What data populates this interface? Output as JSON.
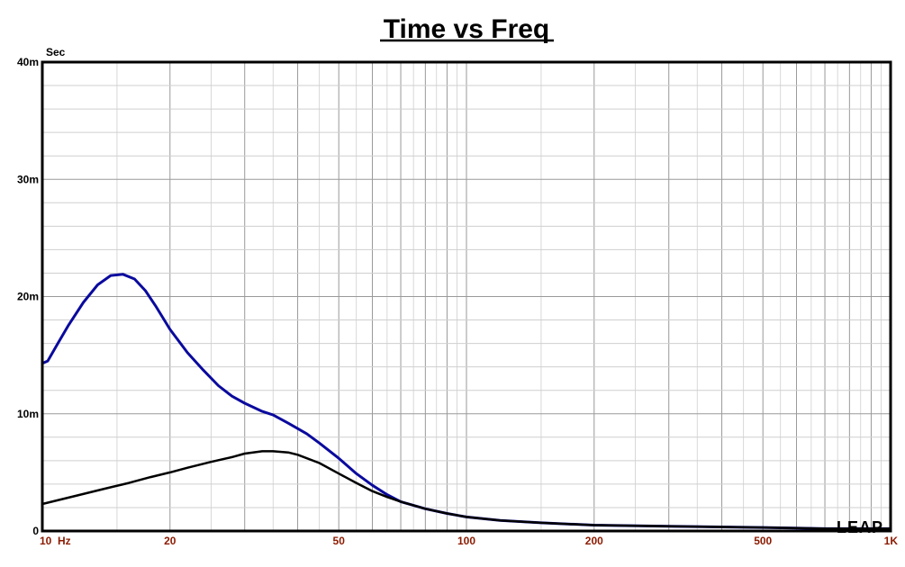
{
  "chart_data": {
    "type": "line",
    "title": "Time vs Freq",
    "ylabel": "Sec",
    "xscale": "log",
    "xlim": [
      10,
      1000
    ],
    "ylim": [
      0,
      0.04
    ],
    "grid": true,
    "xticks": [
      {
        "value": 10,
        "label": "10  Hz"
      },
      {
        "value": 20,
        "label": "20"
      },
      {
        "value": 50,
        "label": "50"
      },
      {
        "value": 100,
        "label": "100"
      },
      {
        "value": 200,
        "label": "200"
      },
      {
        "value": 500,
        "label": "500"
      },
      {
        "value": 1000,
        "label": "1K"
      }
    ],
    "yticks": [
      {
        "value": 0,
        "label": "0"
      },
      {
        "value": 0.01,
        "label": "10m"
      },
      {
        "value": 0.02,
        "label": "20m"
      },
      {
        "value": 0.03,
        "label": "30m"
      },
      {
        "value": 0.04,
        "label": "40m"
      }
    ],
    "series": [
      {
        "color": "#0a0a9e",
        "x": [
          10,
          10.3,
          10.8,
          11.5,
          12.5,
          13.5,
          14.5,
          15.5,
          16.5,
          17.5,
          18.5,
          20,
          22,
          24,
          26,
          28,
          30,
          33,
          35,
          38,
          42,
          45,
          50,
          55,
          60,
          65,
          70,
          80,
          90,
          100,
          120,
          150,
          200,
          300,
          500,
          700,
          1000
        ],
        "y": [
          0.0143,
          0.0145,
          0.0158,
          0.0175,
          0.0195,
          0.021,
          0.0218,
          0.0219,
          0.0215,
          0.0205,
          0.0192,
          0.0172,
          0.0152,
          0.0137,
          0.0124,
          0.0115,
          0.0109,
          0.0102,
          0.0099,
          0.0092,
          0.0083,
          0.0075,
          0.0062,
          0.0049,
          0.0039,
          0.0031,
          0.0025,
          0.0019,
          0.0015,
          0.0012,
          0.0009,
          0.0007,
          0.0005,
          0.0004,
          0.0003,
          0.0002,
          0.0002
        ]
      },
      {
        "color": "#000000",
        "x": [
          10,
          12,
          14,
          16,
          18,
          20,
          22,
          25,
          28,
          30,
          33,
          35,
          38,
          40,
          45,
          50,
          55,
          60,
          65,
          70,
          80,
          90,
          100,
          120,
          150,
          200,
          300,
          500,
          700,
          1000
        ],
        "y": [
          0.0023,
          0.003,
          0.0036,
          0.0041,
          0.0046,
          0.005,
          0.0054,
          0.0059,
          0.0063,
          0.0066,
          0.0068,
          0.0068,
          0.0067,
          0.0065,
          0.0058,
          0.0049,
          0.0041,
          0.0034,
          0.0029,
          0.0025,
          0.0019,
          0.0015,
          0.0012,
          0.0009,
          0.0007,
          0.0005,
          0.0004,
          0.0003,
          0.0002,
          0.0002
        ]
      }
    ]
  },
  "logo_text": "LEAP"
}
